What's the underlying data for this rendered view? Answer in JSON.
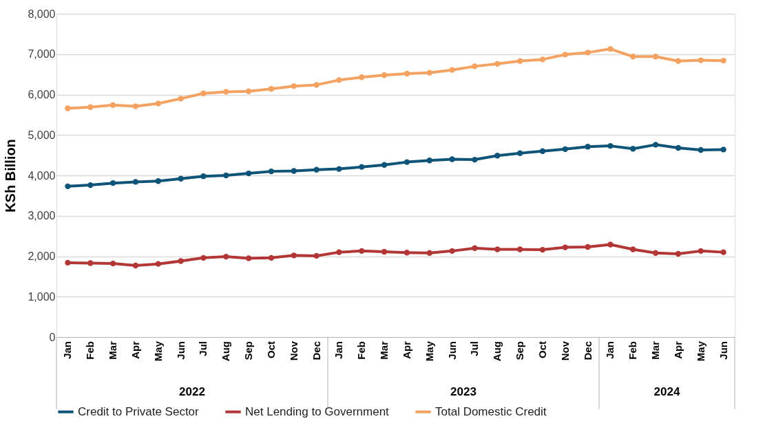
{
  "chart_data": {
    "type": "line",
    "ylabel": "KSh Billion",
    "categories": [
      "Jan",
      "Feb",
      "Mar",
      "Apr",
      "May",
      "Jun",
      "Jul",
      "Aug",
      "Sep",
      "Oct",
      "Nov",
      "Dec",
      "Jan",
      "Feb",
      "Mar",
      "Apr",
      "May",
      "Jun",
      "Jul",
      "Aug",
      "Sep",
      "Oct",
      "Nov",
      "Dec",
      "Jan",
      "Feb",
      "Mar",
      "Apr",
      "May",
      "Jun"
    ],
    "annotations": [
      "2022",
      "2023",
      "2024"
    ],
    "series": [
      {
        "name": "Credit to Private Sector",
        "color": "#0e5478",
        "values": [
          3730,
          3760,
          3810,
          3840,
          3860,
          3920,
          3980,
          4000,
          4050,
          4100,
          4110,
          4140,
          4160,
          4210,
          4260,
          4330,
          4370,
          4400,
          4390,
          4490,
          4550,
          4600,
          4650,
          4710,
          4730,
          4660,
          4760,
          4680,
          4630,
          4640
        ]
      },
      {
        "name": "Net Lending to Government",
        "color": "#b33636",
        "values": [
          1840,
          1830,
          1820,
          1770,
          1810,
          1880,
          1960,
          1990,
          1950,
          1960,
          2020,
          2010,
          2100,
          2130,
          2110,
          2090,
          2080,
          2130,
          2200,
          2170,
          2170,
          2160,
          2220,
          2230,
          2290,
          2170,
          2080,
          2060,
          2130,
          2100
        ]
      },
      {
        "name": "Total Domestic Credit",
        "color": "#f4a261",
        "values": [
          5660,
          5690,
          5740,
          5710,
          5780,
          5900,
          6030,
          6070,
          6080,
          6140,
          6210,
          6240,
          6360,
          6430,
          6480,
          6520,
          6540,
          6610,
          6700,
          6760,
          6830,
          6870,
          6990,
          7040,
          7130,
          6940,
          6940,
          6830,
          6850,
          6840
        ]
      }
    ],
    "ylim": [
      0,
      8000
    ],
    "yticks": [
      0,
      {
        "value": 1000,
        "label": "1,000"
      },
      {
        "value": 2000,
        "label": "2,000"
      },
      {
        "value": 3000,
        "label": "3,000"
      },
      {
        "value": 4000,
        "label": "4,000"
      },
      {
        "value": 5000,
        "label": "5,000"
      },
      {
        "value": 6000,
        "label": "6,000"
      },
      {
        "value": 7000,
        "label": "7,000"
      },
      {
        "value": 8000,
        "label": "8,000"
      }
    ],
    "grid": "y",
    "legend": "bottom",
    "marker": "circle",
    "line_style": "solid"
  }
}
